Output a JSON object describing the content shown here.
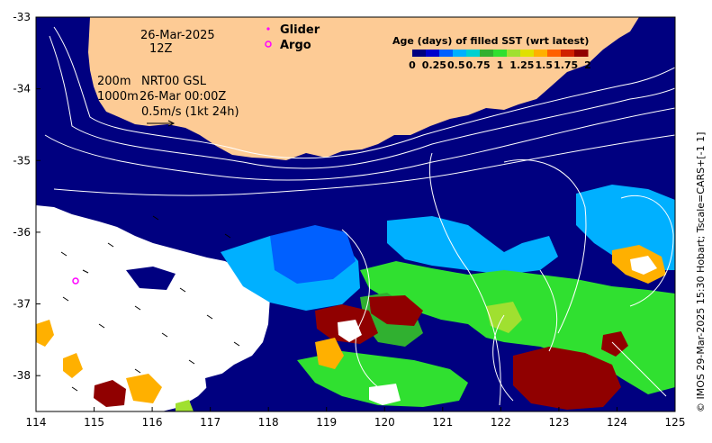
{
  "annotations": {
    "date": "26-Mar-2025",
    "hour": "12Z",
    "depth_200": "200m",
    "depth_1000": "1000m",
    "product": "NRT00 GSL",
    "product_time": "26-Mar 00:00Z",
    "arrow_scale": "0.5m/s (1kt 24h)"
  },
  "legend": {
    "glider_label": "Glider",
    "argo_label": "Argo",
    "glider_color": "#ff00ff",
    "argo_color": "#ff00ff"
  },
  "colorbar": {
    "title": "Age (days) of filled SST (wrt latest)",
    "labels": [
      "0",
      "0.25",
      "0.5",
      "0.75",
      "1",
      "1.25",
      "1.5",
      "1.75",
      "2"
    ],
    "colors": [
      "#000080",
      "#0000cd",
      "#0060ff",
      "#00b0ff",
      "#00d0d0",
      "#30b030",
      "#30e030",
      "#a0e030",
      "#e0e000",
      "#ffb000",
      "#ff6000",
      "#d02000",
      "#900000"
    ]
  },
  "credit": "© IMOS 29-Mar-2025 15:30 Hobart; Tscale=CARS+[-1 1]",
  "axes": {
    "x_ticks": [
      "114",
      "115",
      "116",
      "117",
      "118",
      "119",
      "120",
      "121",
      "122",
      "123",
      "124",
      "125"
    ],
    "y_ticks": [
      "-33",
      "-34",
      "-35",
      "-36",
      "-37",
      "-38"
    ],
    "xlim": [
      114,
      125
    ],
    "ylim": [
      -38.5,
      -33
    ]
  },
  "colors": {
    "land": "#fdcb95",
    "ocean_latest": "#000080",
    "no_data": "#ffffff"
  }
}
